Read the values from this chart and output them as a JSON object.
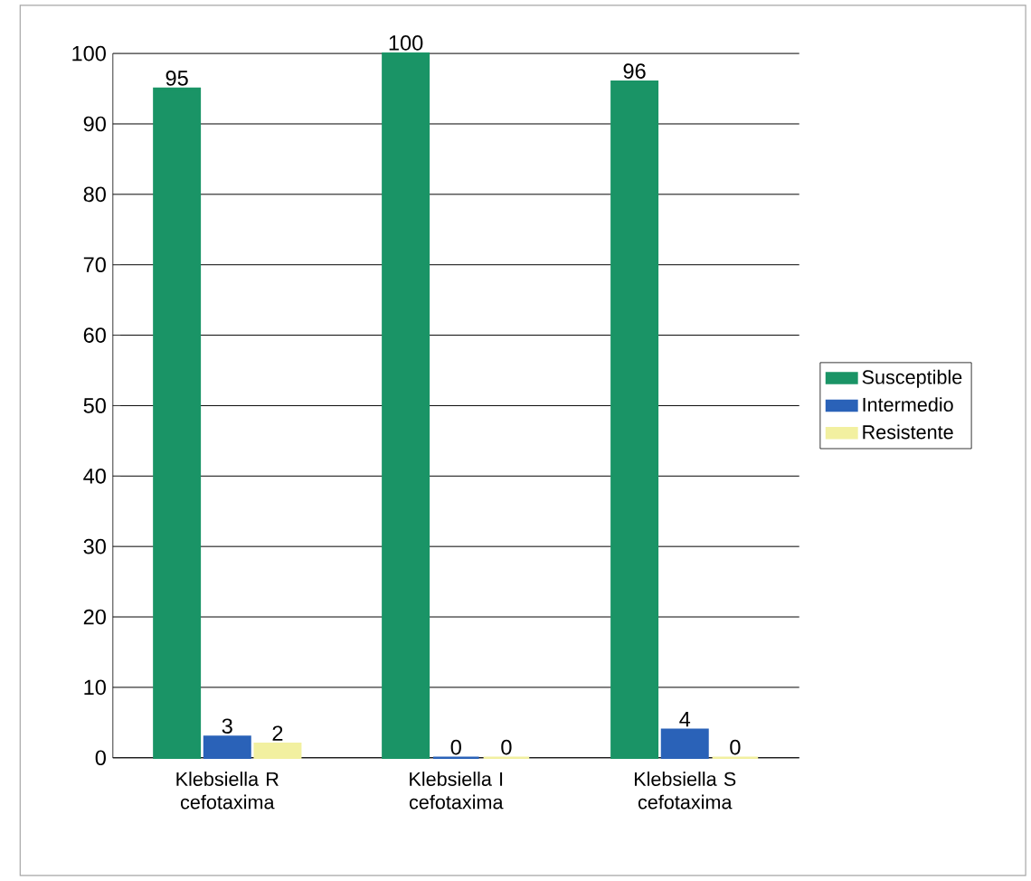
{
  "chart_data": {
    "type": "bar",
    "categories": [
      "Klebsiella R cefotaxima",
      "Klebsiella I cefotaxima",
      "Klebsiella S cefotaxima"
    ],
    "series": [
      {
        "name": "Susceptible",
        "color": "#1a9466",
        "values": [
          95,
          100,
          96
        ]
      },
      {
        "name": "Intermedio",
        "color": "#2a62b8",
        "values": [
          3,
          0,
          4
        ]
      },
      {
        "name": "Resistente",
        "color": "#f2f0a0",
        "values": [
          2,
          0,
          0
        ]
      }
    ],
    "ylim": [
      0,
      100
    ],
    "yticks": [
      0,
      10,
      20,
      30,
      40,
      50,
      60,
      70,
      80,
      90,
      100
    ],
    "grid": "y",
    "legend": "right",
    "data_labels": true
  }
}
